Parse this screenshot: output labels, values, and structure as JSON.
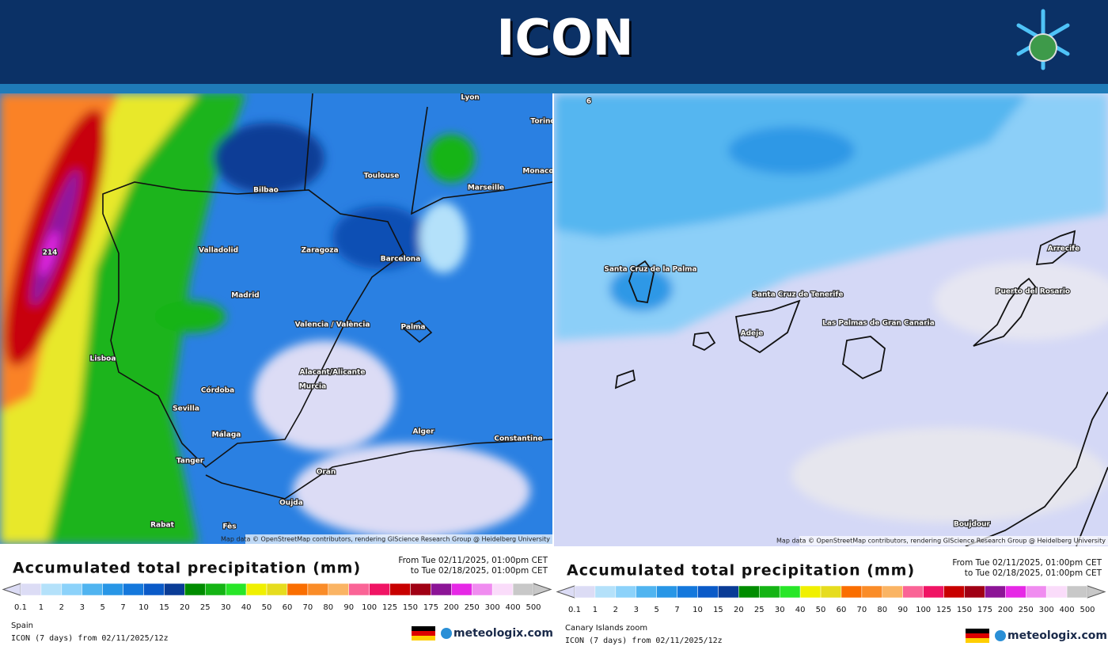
{
  "header": {
    "title": "ICON"
  },
  "scale": {
    "colors": [
      "#dcdcf5",
      "#b4e1fa",
      "#8cd2fa",
      "#50b4f0",
      "#2896e6",
      "#1478dc",
      "#0a5ac8",
      "#0a3c96",
      "#008c00",
      "#14b414",
      "#28e628",
      "#f0f000",
      "#e6dc1e",
      "#fa6e00",
      "#fa8c28",
      "#fab464",
      "#fa6496",
      "#f01464",
      "#c80000",
      "#a00014",
      "#8c1496",
      "#e628e6",
      "#f08cf0",
      "#fadcfa",
      "#c8c8c8"
    ],
    "ticks": [
      0.1,
      1,
      2,
      3,
      5,
      7,
      10,
      15,
      20,
      25,
      30,
      40,
      50,
      60,
      70,
      80,
      90,
      100,
      125,
      150,
      175,
      200,
      250,
      300,
      400,
      500
    ]
  },
  "panels": [
    {
      "labels": [
        "Lyon",
        "Torino",
        "Toulouse",
        "Monaco",
        "Bilbao",
        "Marseille",
        "Valladolid",
        "Zaragoza",
        "Barcelona",
        "Madrid",
        "Valencia / València",
        "Palma",
        "Lisboa",
        "Alacant/Alicante",
        "Murcia",
        "Córdoba",
        "Sevilla",
        "Málaga",
        "Alger",
        "Constantine",
        "Tanger",
        "Oran",
        "Oujda",
        "Rabat",
        "Fès",
        "214"
      ],
      "attribution": "Map data © OpenStreetMap contributors, rendering GIScience Research Group @ Heidelberg University",
      "legend_title": "Accumulated total precipitation (mm)",
      "period": [
        "From Tue 02/11/2025, 01:00pm CET",
        "to Tue 02/18/2025, 01:00pm CET"
      ],
      "region": "Spain",
      "model": "ICON (7 days) from 02/11/2025/12z",
      "brand": "meteologix.com"
    },
    {
      "labels": [
        "6",
        "Santa Cruz de la Palma",
        "Santa Cruz de Tenerife",
        "Adeje",
        "Las Palmas de Gran Canaria",
        "Puerto del Rosario",
        "Arrecife",
        "Boujdour"
      ],
      "attribution": "Map data © OpenStreetMap contributors, rendering GIScience Research Group @ Heidelberg University",
      "legend_title": "Accumulated total precipitation (mm)",
      "period": [
        "From Tue 02/11/2025, 01:00pm CET",
        "to Tue 02/18/2025, 01:00pm CET"
      ],
      "region": "Canary Islands zoom",
      "model": "ICON (7 days) from 02/11/2025/12z",
      "brand": "meteologix.com"
    }
  ]
}
